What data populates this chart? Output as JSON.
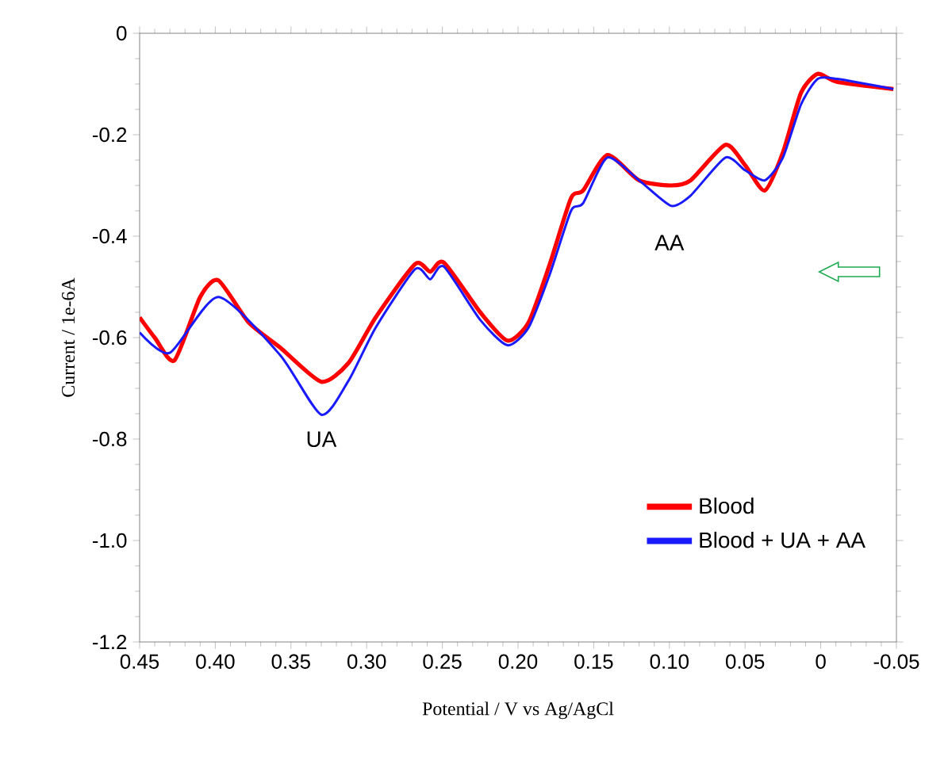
{
  "chart_data": {
    "type": "line",
    "xlabel": "Potential / V vs Ag/AgCl",
    "ylabel": "Current / 1e-6A",
    "xlim": [
      0.45,
      -0.05
    ],
    "ylim": [
      -1.2,
      0
    ],
    "xticks": [
      0.45,
      {
        "value": 0.4,
        "label": "0.40"
      },
      0.35,
      {
        "value": 0.3,
        "label": "0.30"
      },
      0.25,
      {
        "value": 0.2,
        "label": "0.20"
      },
      0.15,
      {
        "value": 0.1,
        "label": "0.10"
      },
      0.05,
      0,
      -0.05
    ],
    "yticks": [
      {
        "value": -1.2,
        "label": "-1.2"
      },
      {
        "value": -1.0,
        "label": "-1.0"
      },
      -0.8,
      -0.6,
      -0.4,
      -0.2,
      0
    ],
    "legend": "bottom right",
    "line_style": "solid",
    "grid": false,
    "annotations": [
      "UA",
      "AA"
    ],
    "series": [
      {
        "name": "Blood",
        "color": "#ff0000",
        "x": [
          0.45,
          0.44,
          0.427,
          0.41,
          0.398,
          0.378,
          0.357,
          0.33,
          0.312,
          0.294,
          0.268,
          0.258,
          0.249,
          0.225,
          0.207,
          0.193,
          0.179,
          0.165,
          0.157,
          0.141,
          0.12,
          0.099,
          0.086,
          0.063,
          0.05,
          0.037,
          0.025,
          0.013,
          0.002,
          -0.011,
          -0.048
        ],
        "values": [
          -0.56,
          -0.6,
          -0.645,
          -0.52,
          -0.487,
          -0.57,
          -0.62,
          -0.687,
          -0.65,
          -0.56,
          -0.455,
          -0.47,
          -0.452,
          -0.55,
          -0.606,
          -0.57,
          -0.455,
          -0.325,
          -0.31,
          -0.24,
          -0.29,
          -0.3,
          -0.29,
          -0.22,
          -0.26,
          -0.31,
          -0.235,
          -0.117,
          -0.08,
          -0.096,
          -0.11
        ]
      },
      {
        "name": "Blood + UA + AA",
        "color": "#1a1aff",
        "x": [
          0.45,
          0.43,
          0.398,
          0.357,
          0.33,
          0.312,
          0.294,
          0.268,
          0.258,
          0.249,
          0.225,
          0.207,
          0.193,
          0.179,
          0.165,
          0.157,
          0.141,
          0.12,
          0.099,
          0.086,
          0.063,
          0.05,
          0.037,
          0.025,
          0.013,
          0.002,
          -0.011,
          -0.048
        ],
        "values": [
          -0.59,
          -0.63,
          -0.52,
          -0.635,
          -0.752,
          -0.685,
          -0.58,
          -0.465,
          -0.485,
          -0.46,
          -0.565,
          -0.615,
          -0.58,
          -0.475,
          -0.35,
          -0.335,
          -0.245,
          -0.29,
          -0.34,
          -0.32,
          -0.245,
          -0.27,
          -0.29,
          -0.245,
          -0.14,
          -0.09,
          -0.09,
          -0.11
        ]
      }
    ]
  }
}
